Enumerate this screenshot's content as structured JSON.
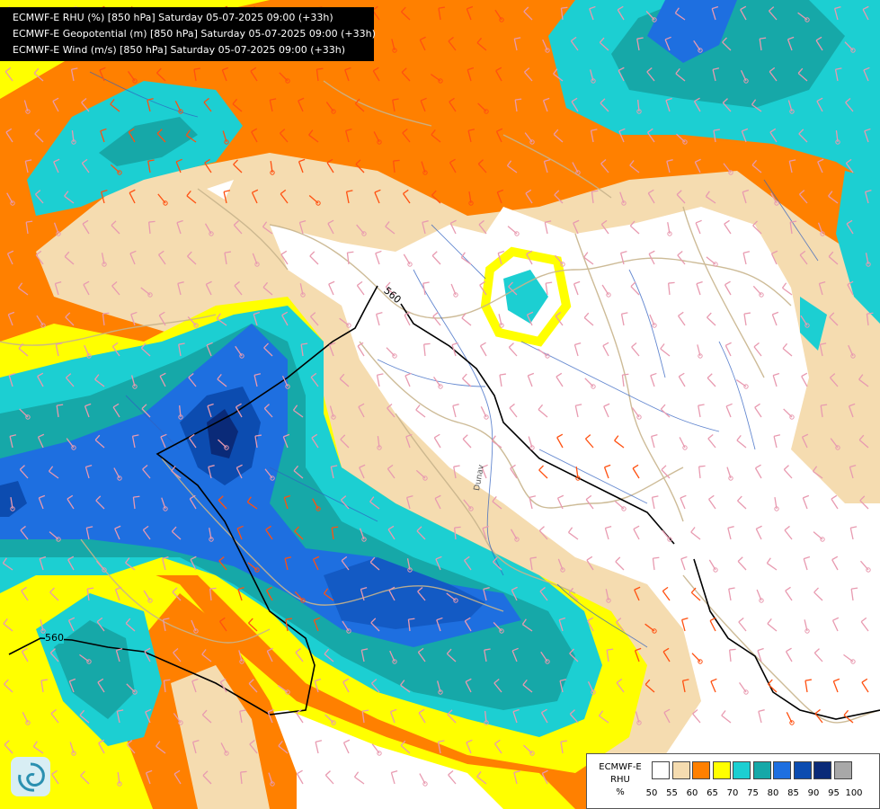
{
  "header": {
    "lines": [
      "ECMWF-E RHU (%) [850 hPa] Saturday 05-07-2025 09:00 (+33h)",
      "ECMWF-E Geopotential (m) [850 hPa] Saturday 05-07-2025 09:00 (+33h)",
      "ECMWF-E Wind (m/s) [850 hPa] Saturday 05-07-2025 09:00 (+33h)"
    ]
  },
  "contours": {
    "geopotential_label_1": "560",
    "geopotential_label_2": "560"
  },
  "map_labels": {
    "river": "Dunav"
  },
  "legend": {
    "title_line1": "ECMWF-E",
    "title_line2": "RHU",
    "unit": "%",
    "colors": [
      "#ffffff",
      "#f5dcb0",
      "#ff8000",
      "#ffff00",
      "#1ccfd2",
      "#16a8a8",
      "#1e6fe0",
      "#0c4cb0",
      "#0a2a78",
      "#a8a8a8",
      "#606060"
    ],
    "ticks": [
      "50",
      "55",
      "60",
      "65",
      "70",
      "75",
      "80",
      "85",
      "90",
      "95",
      "100"
    ]
  },
  "palette": {
    "white": "#ffffff",
    "tan": "#f5dcb0",
    "orange": "#ff8000",
    "yellow": "#ffff00",
    "cyan": "#1ccfd2",
    "teal": "#16a8a8",
    "blue": "#1e6fe0",
    "darkblue": "#0c4cb0",
    "navy": "#0a2a78",
    "border": "#c8b48c",
    "river": "#3060c0",
    "wind_pink": "#e89ab0",
    "wind_orange": "#ff5010"
  }
}
